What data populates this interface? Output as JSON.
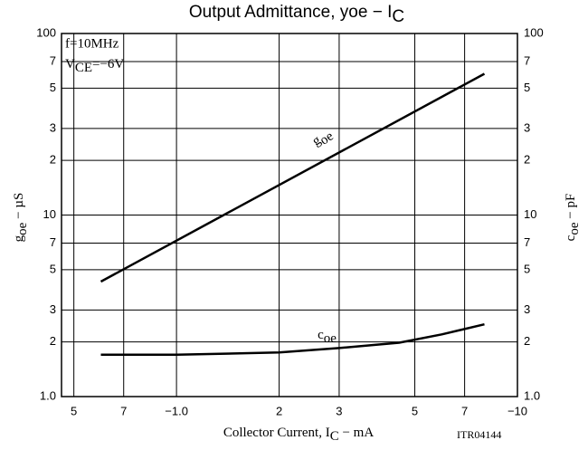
{
  "chart_data": {
    "type": "line",
    "log_x": true,
    "log_y": true,
    "grid": true,
    "title": [
      "Output Admittance,  yoe  −  I",
      "C"
    ],
    "x_label": [
      "Collector Current,  I",
      "C",
      "  −  mA"
    ],
    "y_label": [
      "g",
      "oe",
      "  −  µS"
    ],
    "y2_label": [
      "c",
      "oe",
      "  −  pF"
    ],
    "annotations": {
      "freq": "f=10MHz",
      "vce": [
        "V",
        "CE",
        "=−6V"
      ],
      "code": "ITR04144"
    },
    "xlim": [
      0.46,
      10
    ],
    "xticks": [
      {
        "value": 0.5,
        "label": "5"
      },
      {
        "value": 0.7,
        "label": "7"
      },
      {
        "value": 1,
        "label": "−1.0"
      },
      2,
      3,
      5,
      7,
      {
        "value": 10,
        "label": "−10"
      }
    ],
    "ylim": [
      1,
      100
    ],
    "yticks": [
      {
        "value": 1,
        "label": "1.0"
      },
      2,
      3,
      5,
      7,
      10,
      2,
      3,
      5,
      7,
      100
    ],
    "yticks_values": [
      1,
      2,
      3,
      5,
      7,
      10,
      20,
      30,
      50,
      70,
      100
    ],
    "y2lim": [
      1,
      100
    ],
    "y2ticks": [
      {
        "value": 1,
        "label": "1.0"
      },
      2,
      3,
      5,
      7,
      10,
      2,
      3,
      5,
      7,
      100
    ],
    "series": [
      {
        "name": [
          "g",
          "oe"
        ],
        "color": "#000",
        "x": [
          0.6,
          8
        ],
        "values": [
          4.3,
          60
        ]
      },
      {
        "name": [
          "c",
          "oe"
        ],
        "color": "#000",
        "axis": "y2",
        "x": [
          0.6,
          1.0,
          2,
          3,
          4.5,
          6,
          8
        ],
        "values": [
          1.7,
          1.7,
          1.75,
          1.85,
          1.98,
          2.2,
          2.5
        ]
      }
    ]
  }
}
